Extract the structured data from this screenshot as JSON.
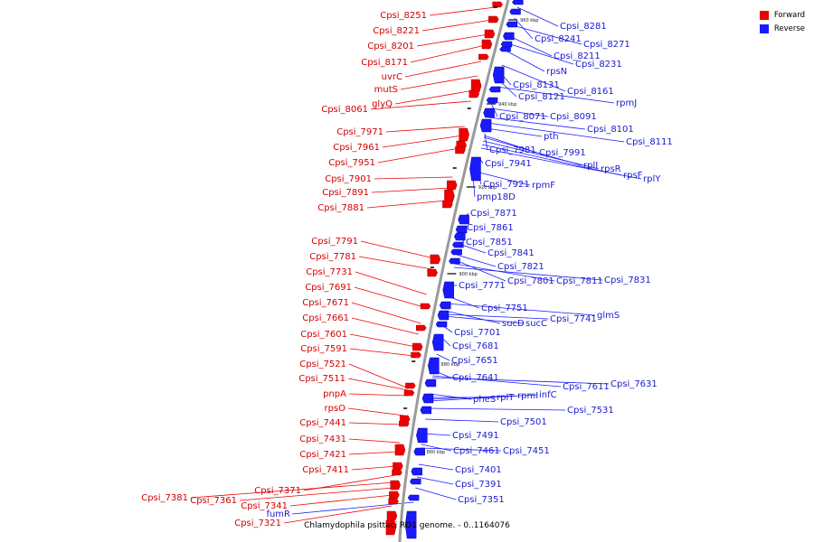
{
  "caption": "Chlamydophila psittaci RD1 genome. - 0..1164076",
  "legend": [
    {
      "label": "Forward",
      "color": "#ee0000"
    },
    {
      "label": "Reverse",
      "color": "#1a1aff"
    }
  ],
  "ticks": [
    "960 kbp",
    "940 kbp",
    "920 kbp",
    "900 kbp",
    "880 kbp",
    "860 kbp"
  ],
  "forward_labels": [
    "Cpsi_8251",
    "Cpsi_8221",
    "Cpsi_8201",
    "Cpsi_8171",
    "uvrC",
    "mutS",
    "glyQ",
    "Cpsi_8061",
    "Cpsi_7971",
    "Cpsi_7961",
    "Cpsi_7951",
    "Cpsi_7901",
    "Cpsi_7891",
    "Cpsi_7881",
    "Cpsi_7791",
    "Cpsi_7781",
    "Cpsi_7731",
    "Cpsi_7691",
    "Cpsi_7671",
    "Cpsi_7661",
    "Cpsi_7601",
    "Cpsi_7591",
    "Cpsi_7521",
    "Cpsi_7511",
    "pnpA",
    "rpsO",
    "Cpsi_7441",
    "Cpsi_7431",
    "Cpsi_7421",
    "Cpsi_7411",
    "Cpsi_7371",
    "Cpsi_7381",
    "Cpsi_7361",
    "Cpsi_7341",
    "Cpsi_7321"
  ],
  "reverse_labels": [
    "Cpsi_8281",
    "Cpsi_8241",
    "Cpsi_8271",
    "Cpsi_8211",
    "Cpsi_8231",
    "rpsN",
    "Cpsi_8161",
    "Cpsi_8131",
    "Cpsi_8121",
    "rpmJ",
    "Cpsi_8071",
    "Cpsi_8091",
    "Cpsi_8101",
    "Cpsi_8111",
    "pth",
    "Cpsi_7981",
    "Cpsi_7991",
    "rplI",
    "rpsR",
    "rpsF",
    "rplY",
    "Cpsi_7941",
    "Cpsi_7921",
    "rpmF",
    "pmp18D",
    "Cpsi_7871",
    "Cpsi_7861",
    "Cpsi_7851",
    "Cpsi_7841",
    "Cpsi_7821",
    "Cpsi_7801",
    "Cpsi_7811",
    "Cpsi_7831",
    "Cpsi_7771",
    "Cpsi_7751",
    "glmS",
    "sucD",
    "sucC",
    "Cpsi_7741",
    "Cpsi_7701",
    "Cpsi_7681",
    "Cpsi_7651",
    "Cpsi_7641",
    "Cpsi_7611",
    "Cpsi_7631",
    "pheS",
    "rplT",
    "rpmI",
    "infC",
    "Cpsi_7531",
    "Cpsi_7501",
    "Cpsi_7491",
    "Cpsi_7461",
    "Cpsi_7451",
    "Cpsi_7401",
    "Cpsi_7391",
    "Cpsi_7351",
    "fumR"
  ]
}
